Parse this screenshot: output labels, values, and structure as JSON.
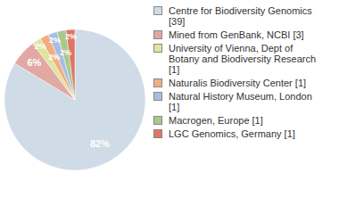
{
  "chart_data": {
    "type": "pie",
    "categories": [
      "Centre for Biodiversity Genomics [39]",
      "Mined from GenBank, NCBI [3]",
      "University of Vienna, Dept of Botany and Biodiversity Research [1]",
      "Naturalis Biodiversity Center [1]",
      "Natural History Museum, London [1]",
      "Macrogen, Europe [1]",
      "LGC Genomics, Germany [1]"
    ],
    "values": [
      82,
      6,
      2,
      2,
      2,
      2,
      2
    ],
    "value_labels": [
      "82%",
      "6%",
      "2%",
      "2%",
      "2%",
      "2%",
      "2%"
    ],
    "colors": [
      "#cfdbe6",
      "#e2a8a4",
      "#dfe59c",
      "#f2ad7f",
      "#a9bde2",
      "#a6c98c",
      "#df7663"
    ],
    "data_labels": true,
    "legend": "right"
  }
}
